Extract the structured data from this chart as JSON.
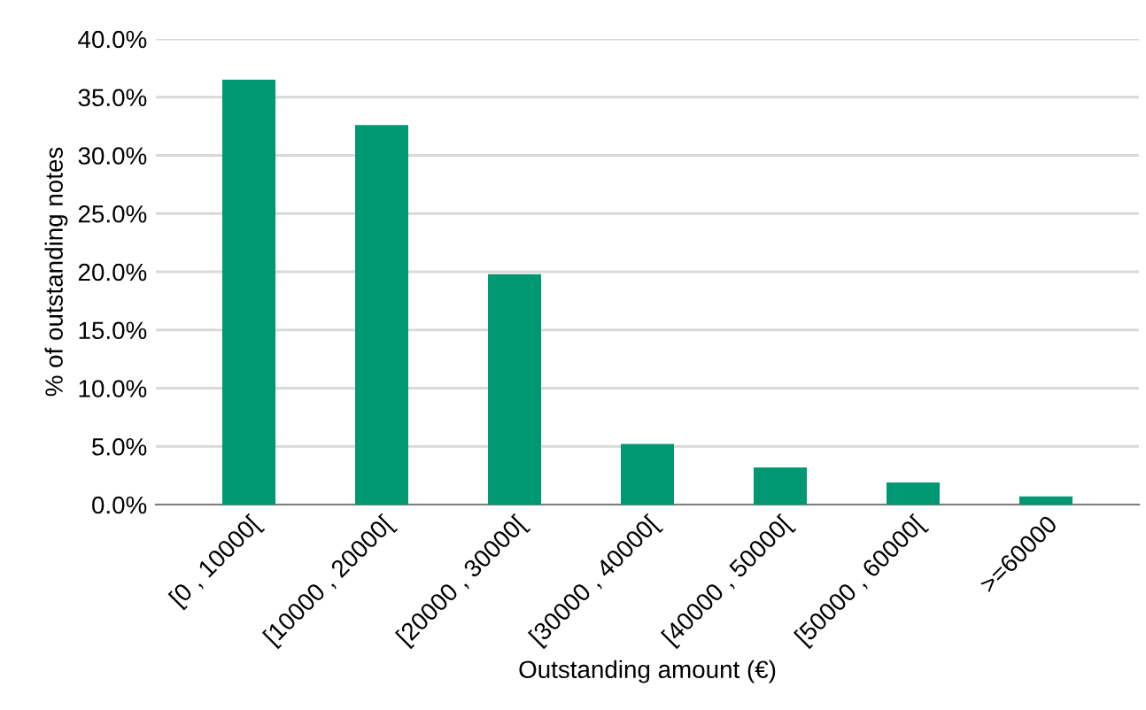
{
  "chart_data": {
    "type": "bar",
    "xlabel": "Outstanding amount (€)",
    "ylabel": "% of outstanding notes",
    "categories": [
      "[0 , 10000[",
      "[10000 , 20000[",
      "[20000 , 30000[",
      "[30000 , 40000[",
      "[40000 , 50000[",
      "[50000 , 60000[",
      ">=60000"
    ],
    "values": [
      36.5,
      32.6,
      19.8,
      5.2,
      3.2,
      1.9,
      0.7
    ],
    "color": "#009873",
    "ylim": [
      0,
      40
    ],
    "yticks": [
      {
        "value": 0,
        "label": "0.0%"
      },
      {
        "value": 5,
        "label": "5.0%"
      },
      {
        "value": 10,
        "label": "10.0%"
      },
      {
        "value": 15,
        "label": "15.0%"
      },
      {
        "value": 20,
        "label": "20.0%"
      },
      {
        "value": 25,
        "label": "25.0%"
      },
      {
        "value": 30,
        "label": "30.0%"
      },
      {
        "value": 35,
        "label": "35.0%"
      },
      {
        "value": 40,
        "label": "40.0%"
      }
    ],
    "grid": "y"
  }
}
